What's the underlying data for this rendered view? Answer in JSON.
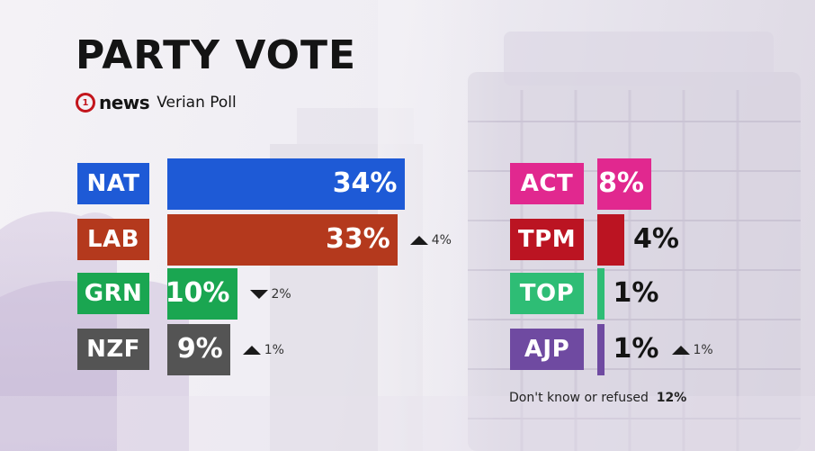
{
  "header": {
    "title": "PARTY VOTE",
    "logo_digit": "1",
    "logo_text": "news",
    "subtitle": "Verian Poll"
  },
  "colors": {
    "NAT": "#1e5ad6",
    "LAB": "#b4391d",
    "GRN": "#1aa651",
    "NZF": "#545454",
    "ACT": "#e1288f",
    "TPM": "#bb1422",
    "TOP": "#2ebd75",
    "AJP": "#6f4aa1"
  },
  "chart_data": {
    "type": "bar",
    "title": "PARTY VOTE",
    "categories": [
      "NAT",
      "LAB",
      "GRN",
      "NZF",
      "ACT",
      "TPM",
      "TOP",
      "AJP"
    ],
    "values": [
      34,
      33,
      10,
      9,
      8,
      4,
      1,
      1
    ],
    "value_labels": [
      "34%",
      "33%",
      "10%",
      "9%",
      "8%",
      "4%",
      "1%",
      "1%"
    ],
    "changes": [
      {
        "party": "LAB",
        "direction": "up",
        "label": "4%"
      },
      {
        "party": "GRN",
        "direction": "down",
        "label": "2%"
      },
      {
        "party": "NZF",
        "direction": "up",
        "label": "1%"
      },
      {
        "party": "AJP",
        "direction": "up",
        "label": "1%"
      }
    ],
    "footnote": {
      "label": "Don't know or refused",
      "value": "12%"
    }
  }
}
